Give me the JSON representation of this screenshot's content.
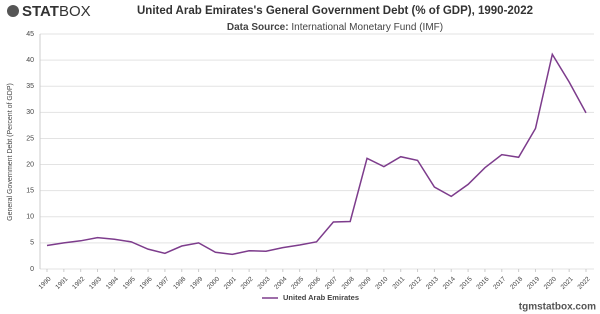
{
  "logo": {
    "bold": "STAT",
    "light": "BOX"
  },
  "footer": "tgmstatbox.com",
  "chart_data": {
    "type": "line",
    "title": "United Arab Emirates's General Government Debt (% of GDP), 1990-2022",
    "source_label": "Data Source:",
    "source": "International Monetary Fund (IMF)",
    "y_label": "General Government Debt (Percent of GDP)",
    "categories": [
      "1990",
      "1991",
      "1992",
      "1993",
      "1994",
      "1995",
      "1996",
      "1997",
      "1998",
      "1999",
      "2000",
      "2001",
      "2002",
      "2003",
      "2004",
      "2005",
      "2006",
      "2007",
      "2008",
      "2009",
      "2010",
      "2011",
      "2012",
      "2013",
      "2014",
      "2015",
      "2016",
      "2017",
      "2018",
      "2019",
      "2020",
      "2021",
      "2022"
    ],
    "series": [
      {
        "name": "United Arab Emirates",
        "color": "#7d3c8c",
        "values": [
          4.5,
          5.0,
          5.4,
          6.0,
          5.7,
          5.2,
          3.8,
          3.0,
          4.4,
          5.0,
          3.2,
          2.8,
          3.5,
          3.4,
          4.1,
          4.6,
          5.2,
          9.0,
          9.1,
          21.2,
          19.6,
          21.5,
          20.8,
          15.7,
          13.9,
          16.2,
          19.4,
          21.9,
          21.4,
          26.9,
          41.1,
          35.8,
          29.9
        ]
      }
    ],
    "ylim": [
      0,
      45
    ],
    "yticks": [
      0,
      5,
      10,
      15,
      20,
      25,
      30,
      35,
      40,
      45
    ],
    "grid": true
  }
}
